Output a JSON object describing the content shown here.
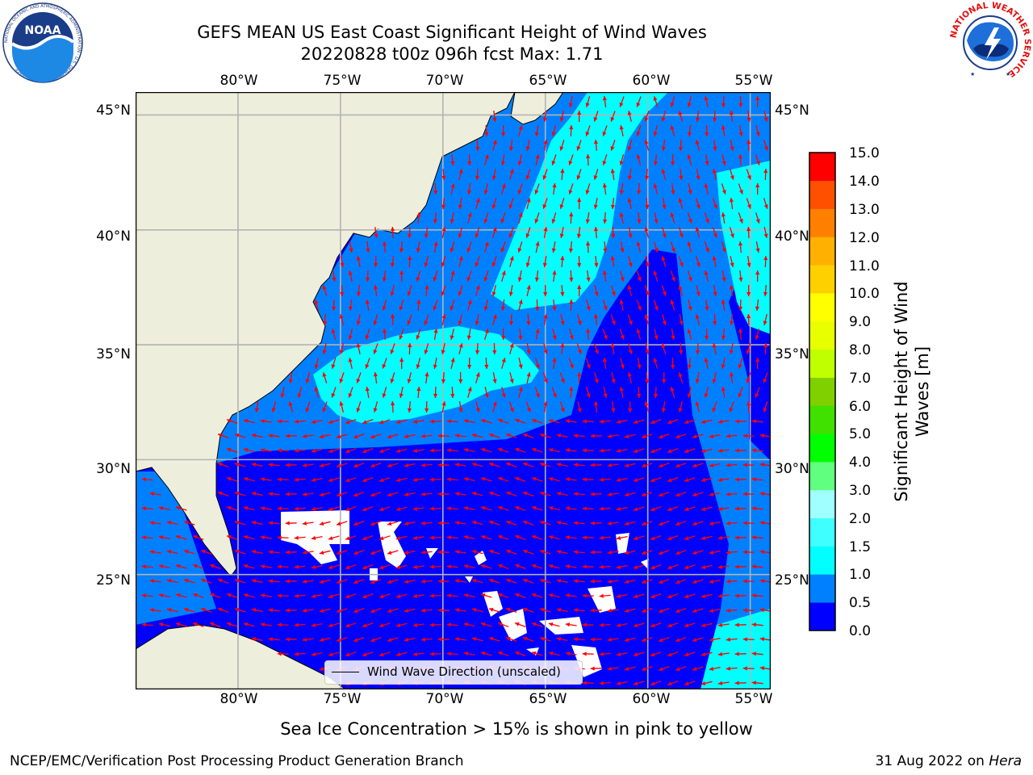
{
  "title": {
    "line1": "GEFS MEAN US East Coast Significant Height of Wind Waves",
    "line2": "20220828 t00z 096h fcst   Max: 1.71"
  },
  "map": {
    "lon_range": [
      -85,
      -54
    ],
    "lat_range": [
      20,
      46
    ],
    "lon_ticks": [
      "80°W",
      "75°W",
      "70°W",
      "65°W",
      "60°W",
      "55°W"
    ],
    "lat_ticks": [
      "45°N",
      "40°N",
      "35°N",
      "30°N",
      "25°N"
    ],
    "colors": {
      "land": "#eeeedc",
      "band_0": "#0000ff",
      "band_05": "#0080ff",
      "band_1": "#00ffff",
      "band_15": "#40ffff",
      "arrow": "#ff0000",
      "grid": "#b3b3b3"
    },
    "legend_text": "Wind Wave Direction (unscaled)"
  },
  "colorbar": {
    "label": "Significant Height of Wind Waves [m]",
    "ticks": [
      "15.0",
      "14.0",
      "13.0",
      "12.0",
      "11.0",
      "10.0",
      "9.0",
      "8.0",
      "7.0",
      "6.0",
      "5.0",
      "4.0",
      "3.0",
      "2.0",
      "1.5",
      "1.0",
      "0.5",
      "0.0"
    ],
    "levels": [
      0.0,
      0.5,
      1.0,
      1.5,
      2.0,
      3.0,
      4.0,
      5.0,
      6.0,
      7.0,
      8.0,
      9.0,
      10.0,
      11.0,
      12.0,
      13.0,
      14.0,
      15.0
    ],
    "colors": [
      "#0000ff",
      "#0080ff",
      "#00ffff",
      "#40ffff",
      "#a0ffff",
      "#60ff80",
      "#00ff00",
      "#40e000",
      "#80d000",
      "#c0ff00",
      "#e8ff00",
      "#ffff00",
      "#ffd000",
      "#ffb000",
      "#ff8000",
      "#ff5000",
      "#ff0000"
    ]
  },
  "ice_note": "Sea Ice Concentration > 15% is shown in pink to yellow",
  "footer": {
    "left": "NCEP/EMC/Verification Post Processing Product Generation Branch",
    "date": "31 Aug 2022 on",
    "machine": "Hera"
  },
  "logos": {
    "noaa_text": "NOAA",
    "noaa_ring": "NATIONAL OCEANIC AND ATMOSPHERIC ADMINISTRATION · U.S. DEPARTMENT OF COMMERCE",
    "nws_ring": "NATIONAL WEATHER SERVICE"
  }
}
